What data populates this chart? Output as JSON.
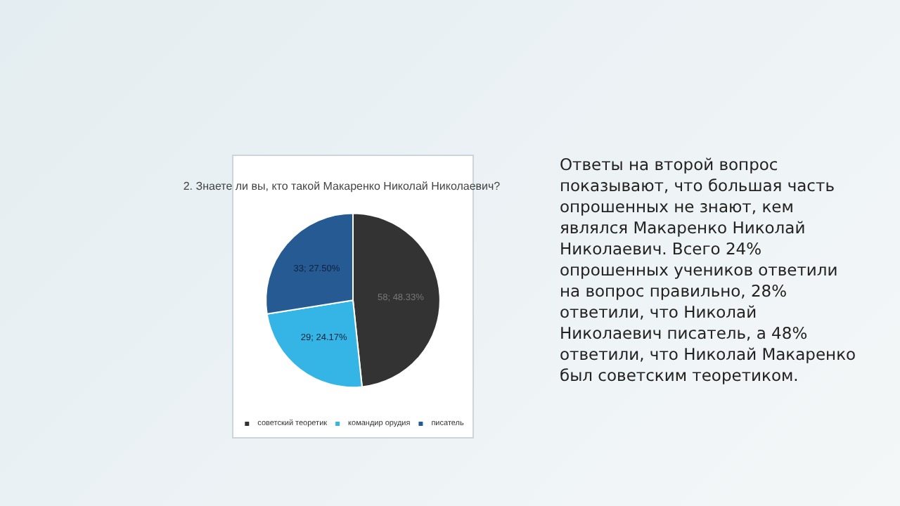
{
  "chart_data": {
    "type": "pie",
    "title": "2. Знаете ли вы, кто такой Макаренко Николай Николаевич?",
    "categories": [
      "советский теоретик",
      "командир орудия",
      "писатель"
    ],
    "values": [
      58,
      29,
      33
    ],
    "colors": [
      "#333333",
      "#35b5e5",
      "#255a93"
    ],
    "value_labels": [
      "58; 48.33%",
      "29; 24.17%",
      "33; 27.50%"
    ],
    "legend": "bottom",
    "annotations": [
      "Ответы на второй вопрос показывают, что большая часть опрошенных не знают, кем являлся Макаренко Николай Николаевич. Всего 24% опрошенных учеников ответили на вопрос правильно, 28% ответили, что Николай Николаевич писатель, а 48% ответили, что Николай Макаренко был советским теоретиком."
    ]
  }
}
